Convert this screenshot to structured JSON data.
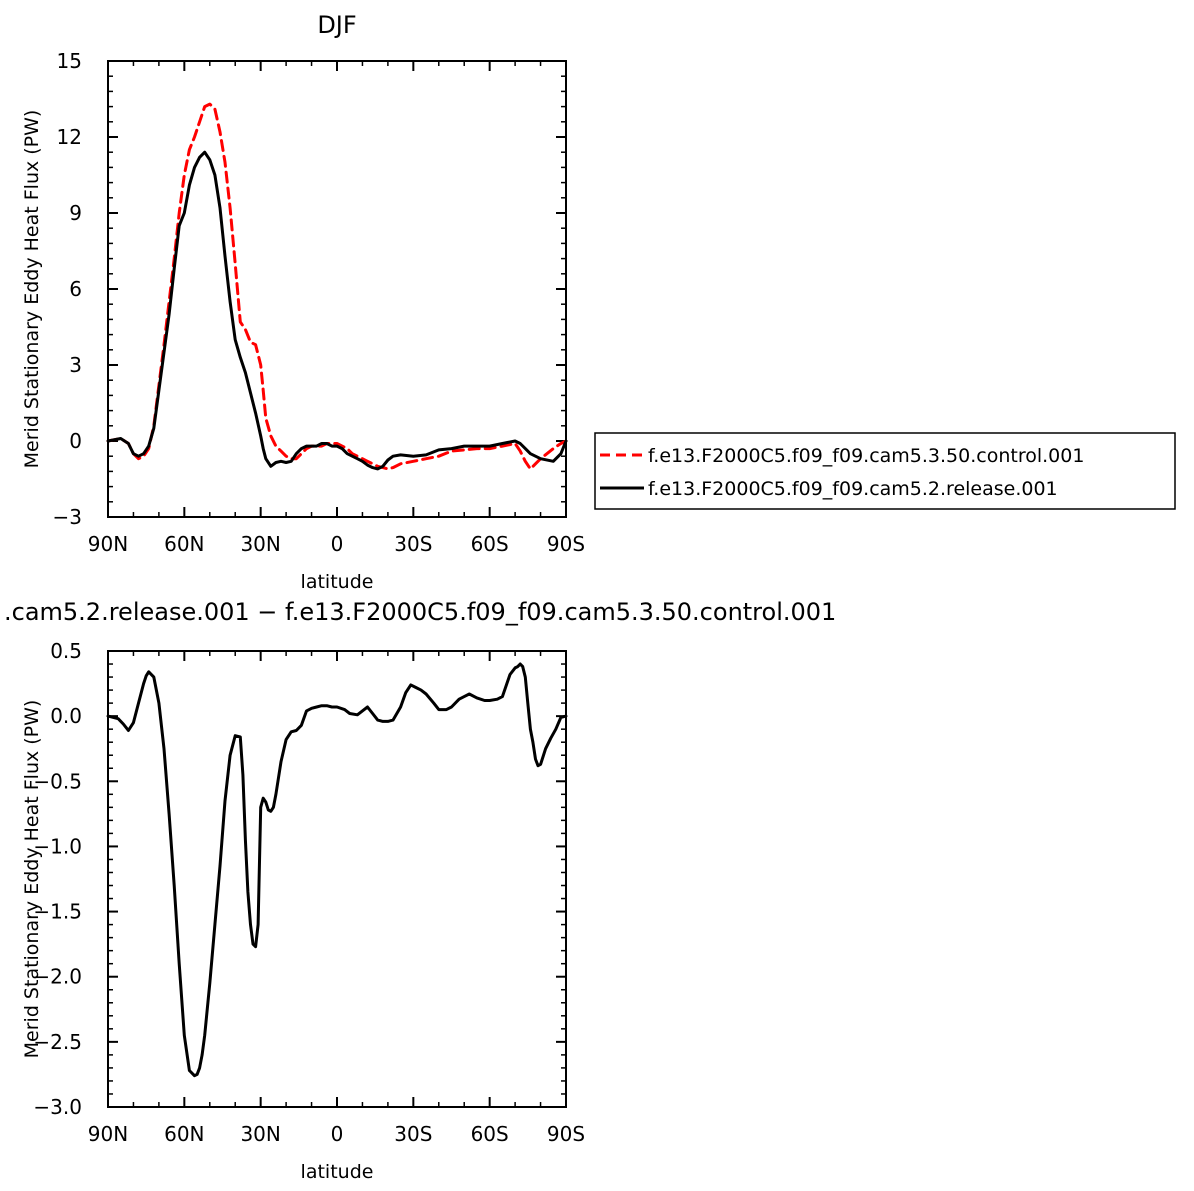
{
  "chart_data": [
    {
      "type": "line",
      "title": "DJF",
      "xlabel": "latitude",
      "ylabel": "Merid Stationary Eddy Heat Flux (PW)",
      "xlim": [
        90,
        -90
      ],
      "ylim": [
        -3,
        15
      ],
      "xticks": [
        90,
        60,
        30,
        0,
        -30,
        -60,
        -90
      ],
      "xtick_labels": [
        "90N",
        "60N",
        "30N",
        "0",
        "30S",
        "60S",
        "90S"
      ],
      "yticks": [
        -3,
        0,
        3,
        6,
        9,
        12,
        15
      ],
      "ytick_labels": [
        "−3",
        "0",
        "3",
        "6",
        "9",
        "12",
        "15"
      ],
      "legend_position": "right",
      "series": [
        {
          "name": "f.e13.F2000C5.f09_f09.cam5.3.50.control.001",
          "color": "#ff0000",
          "dash": "dashed",
          "x": [
            90,
            85,
            82,
            80,
            78,
            76,
            74,
            72,
            70,
            68,
            66,
            64,
            62,
            60,
            58,
            56,
            54,
            52,
            50,
            48,
            46,
            44,
            42,
            40,
            38,
            36,
            34,
            32,
            30,
            29,
            28,
            26,
            24,
            22,
            20,
            18,
            16,
            14,
            12,
            10,
            8,
            6,
            4,
            2,
            0,
            -2,
            -4,
            -6,
            -8,
            -10,
            -12,
            -14,
            -16,
            -18,
            -20,
            -22,
            -25,
            -30,
            -35,
            -40,
            -45,
            -50,
            -55,
            -60,
            -65,
            -70,
            -72,
            -74,
            -76,
            -78,
            -80,
            -85,
            -88,
            -90
          ],
          "y": [
            0,
            0.1,
            -0.1,
            -0.5,
            -0.7,
            -0.6,
            -0.3,
            0.6,
            2.2,
            3.8,
            5.5,
            7.2,
            9.0,
            10.5,
            11.5,
            12.0,
            12.6,
            13.2,
            13.3,
            13.1,
            12.2,
            11.0,
            9.2,
            7.0,
            4.7,
            4.4,
            3.9,
            3.8,
            3.0,
            2.0,
            0.9,
            0.2,
            -0.2,
            -0.4,
            -0.6,
            -0.7,
            -0.7,
            -0.5,
            -0.3,
            -0.2,
            -0.2,
            -0.2,
            -0.1,
            -0.1,
            -0.1,
            -0.2,
            -0.3,
            -0.5,
            -0.6,
            -0.7,
            -0.8,
            -0.9,
            -1.0,
            -1.05,
            -1.1,
            -1.05,
            -0.9,
            -0.8,
            -0.7,
            -0.6,
            -0.4,
            -0.35,
            -0.3,
            -0.3,
            -0.2,
            -0.1,
            -0.4,
            -0.8,
            -1.1,
            -0.9,
            -0.7,
            -0.3,
            -0.1,
            0
          ]
        },
        {
          "name": "f.e13.F2000C5.f09_f09.cam5.2.release.001",
          "color": "#000000",
          "dash": "solid",
          "x": [
            90,
            85,
            82,
            80,
            78,
            76,
            74,
            72,
            70,
            68,
            66,
            64,
            62,
            60,
            58,
            56,
            54,
            52,
            50,
            48,
            46,
            44,
            42,
            40,
            38,
            36,
            34,
            32,
            30,
            29,
            28,
            26,
            24,
            22,
            20,
            18,
            16,
            14,
            12,
            10,
            8,
            6,
            4,
            2,
            0,
            -2,
            -4,
            -6,
            -8,
            -10,
            -12,
            -14,
            -16,
            -18,
            -20,
            -22,
            -25,
            -30,
            -35,
            -40,
            -45,
            -50,
            -55,
            -60,
            -65,
            -70,
            -72,
            -74,
            -76,
            -78,
            -80,
            -85,
            -88,
            -90
          ],
          "y": [
            0,
            0.1,
            -0.1,
            -0.5,
            -0.6,
            -0.5,
            -0.2,
            0.5,
            2.0,
            3.5,
            5.0,
            6.8,
            8.5,
            9.0,
            10.1,
            10.8,
            11.2,
            11.4,
            11.1,
            10.5,
            9.2,
            7.3,
            5.5,
            4.0,
            3.3,
            2.7,
            1.9,
            1.1,
            0.2,
            -0.3,
            -0.7,
            -1.0,
            -0.85,
            -0.8,
            -0.85,
            -0.8,
            -0.5,
            -0.3,
            -0.2,
            -0.2,
            -0.2,
            -0.1,
            -0.1,
            -0.2,
            -0.2,
            -0.3,
            -0.5,
            -0.6,
            -0.7,
            -0.8,
            -0.95,
            -1.05,
            -1.1,
            -1.0,
            -0.75,
            -0.6,
            -0.55,
            -0.6,
            -0.55,
            -0.35,
            -0.3,
            -0.2,
            -0.2,
            -0.2,
            -0.1,
            0,
            -0.1,
            -0.3,
            -0.5,
            -0.6,
            -0.7,
            -0.8,
            -0.5,
            0
          ]
        }
      ]
    },
    {
      "type": "line",
      "title": ".cam5.2.release.001 − f.e13.F2000C5.f09_f09.cam5.3.50.control.001",
      "xlabel": "latitude",
      "ylabel": "Merid Stationary Eddy Heat Flux (PW)",
      "xlim": [
        90,
        -90
      ],
      "ylim": [
        -3.0,
        0.5
      ],
      "xticks": [
        90,
        60,
        30,
        0,
        -30,
        -60,
        -90
      ],
      "xtick_labels": [
        "90N",
        "60N",
        "30N",
        "0",
        "30S",
        "60S",
        "90S"
      ],
      "yticks": [
        -3.0,
        -2.5,
        -2.0,
        -1.5,
        -1.0,
        -0.5,
        0.0,
        0.5
      ],
      "ytick_labels": [
        "−3.0",
        "−2.5",
        "−2.0",
        "−1.5",
        "−1.0",
        "−0.5",
        "0.0",
        "0.5"
      ],
      "series": [
        {
          "color": "#000000",
          "dash": "solid",
          "x": [
            90,
            86,
            84,
            82,
            80,
            78,
            76,
            75,
            74,
            72,
            70,
            68,
            66,
            64,
            62,
            60,
            58,
            56,
            55,
            54,
            53,
            52,
            50,
            48,
            46,
            44,
            42,
            40,
            38,
            37,
            36,
            35,
            34,
            33,
            32,
            31,
            30,
            29,
            28,
            27,
            26,
            25,
            24,
            22,
            20,
            18,
            16,
            14,
            12,
            10,
            8,
            6,
            4,
            2,
            0,
            -3,
            -5,
            -8,
            -10,
            -12,
            -14,
            -16,
            -18,
            -20,
            -22,
            -25,
            -27,
            -29,
            -31,
            -33,
            -35,
            -38,
            -40,
            -43,
            -45,
            -48,
            -50,
            -52,
            -55,
            -58,
            -60,
            -63,
            -65,
            -68,
            -70,
            -71,
            -72,
            -73,
            -74,
            -75,
            -76,
            -77,
            -78,
            -79,
            -80,
            -82,
            -84,
            -86,
            -88,
            -90
          ],
          "y": [
            0,
            -0.02,
            -0.06,
            -0.11,
            -0.05,
            0.1,
            0.25,
            0.31,
            0.34,
            0.3,
            0.1,
            -0.25,
            -0.75,
            -1.3,
            -1.9,
            -2.45,
            -2.72,
            -2.76,
            -2.75,
            -2.7,
            -2.6,
            -2.45,
            -2.05,
            -1.6,
            -1.15,
            -0.65,
            -0.3,
            -0.15,
            -0.16,
            -0.45,
            -0.95,
            -1.35,
            -1.6,
            -1.75,
            -1.77,
            -1.6,
            -0.7,
            -0.63,
            -0.66,
            -0.72,
            -0.73,
            -0.7,
            -0.6,
            -0.35,
            -0.18,
            -0.12,
            -0.11,
            -0.07,
            0.04,
            0.06,
            0.07,
            0.08,
            0.08,
            0.07,
            0.07,
            0.05,
            0.02,
            0.01,
            0.04,
            0.07,
            0.02,
            -0.03,
            -0.04,
            -0.04,
            -0.03,
            0.07,
            0.18,
            0.24,
            0.22,
            0.2,
            0.17,
            0.1,
            0.05,
            0.05,
            0.07,
            0.13,
            0.15,
            0.17,
            0.14,
            0.12,
            0.12,
            0.13,
            0.15,
            0.32,
            0.37,
            0.38,
            0.4,
            0.38,
            0.3,
            0.1,
            -0.1,
            -0.2,
            -0.33,
            -0.38,
            -0.37,
            -0.25,
            -0.17,
            -0.1,
            -0.01,
            0
          ]
        }
      ]
    }
  ],
  "legend": {
    "entries": [
      "f.e13.F2000C5.f09_f09.cam5.3.50.control.001",
      "f.e13.F2000C5.f09_f09.cam5.2.release.001"
    ]
  }
}
